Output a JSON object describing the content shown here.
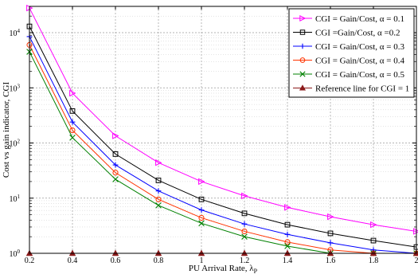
{
  "chart_data": {
    "type": "line",
    "xlabel": "PU Arrival Rate, λ",
    "xlabel_sub": "P",
    "ylabel": "Cost vs gain indicator, CGI",
    "x": [
      0.2,
      0.4,
      0.6,
      0.8,
      1.0,
      1.2,
      1.4,
      1.6,
      1.8,
      2.0
    ],
    "x_tick_labels": [
      "0.2",
      "0.4",
      "0.6",
      "0.8",
      "1",
      "1.2",
      "1.4",
      "1.6",
      "1.8",
      "2"
    ],
    "xlim": [
      0.2,
      2.0
    ],
    "y_scale": "log",
    "ylim": [
      1,
      30000
    ],
    "y_ticks": [
      1,
      10,
      100,
      1000,
      10000
    ],
    "y_tick_bases": [
      "10",
      "10",
      "10",
      "10",
      "10"
    ],
    "y_tick_exps": [
      "0",
      "1",
      "2",
      "3",
      "4"
    ],
    "grid": true,
    "legend_position": "top-right",
    "series": [
      {
        "name": "CGI = Gain/Cost, α = 0.1",
        "marker": "triangle-right",
        "color": "#ff00ff",
        "values": [
          28000,
          800,
          135,
          44,
          20,
          11,
          6.8,
          4.6,
          3.3,
          2.5
        ]
      },
      {
        "name": "CGI  =Gain/Cost, α =0.2",
        "marker": "square",
        "color": "#000000",
        "values": [
          13000,
          380,
          63,
          21,
          9.5,
          5.3,
          3.3,
          2.3,
          1.7,
          1.3
        ]
      },
      {
        "name": "CGI = Gain/Cost, α = 0.3",
        "marker": "plus",
        "color": "#0000ff",
        "values": [
          8500,
          240,
          40,
          13.5,
          6.1,
          3.4,
          2.2,
          1.55,
          1.15,
          0.97
        ]
      },
      {
        "name": "CGI = Gain/Cost, α = 0.4",
        "marker": "circle",
        "color": "#ff3300",
        "values": [
          6000,
          170,
          29,
          9.5,
          4.4,
          2.5,
          1.6,
          1.15,
          0.9,
          0.76
        ]
      },
      {
        "name": "CGI = Gain/Cost, α = 0.5",
        "marker": "x",
        "color": "#008000",
        "values": [
          4500,
          125,
          22,
          7.4,
          3.5,
          2.0,
          1.35,
          0.98,
          0.78,
          0.65
        ]
      },
      {
        "name": "Reference line for CGI = 1",
        "marker": "triangle-up",
        "color": "#8b1a1a",
        "values": [
          1,
          1,
          1,
          1,
          1,
          1,
          1,
          1,
          1,
          1
        ]
      }
    ]
  }
}
